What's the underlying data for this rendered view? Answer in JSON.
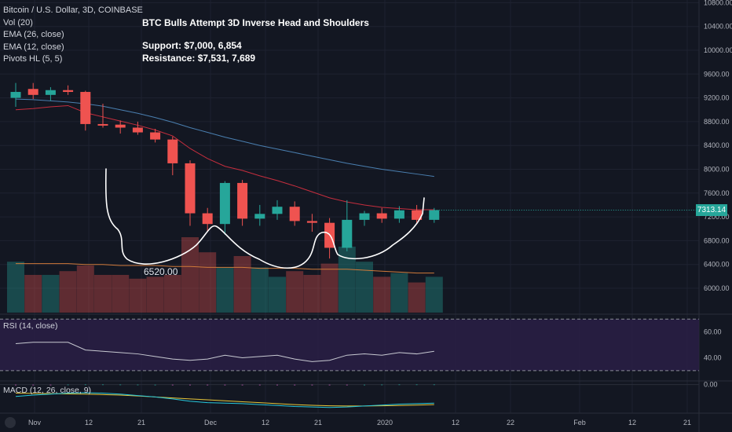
{
  "legend": {
    "symbol": "Bitcoin / U.S. Dollar, 3D, COINBASE",
    "vol": "Vol (20)",
    "ema26": "EMA (26, close)",
    "ema12": "EMA (12, close)",
    "pivots": "Pivots HL (5, 5)"
  },
  "annotation": {
    "title": "BTC Bulls Attempt 3D Inverse Head and Shoulders",
    "support": "Support: $7,000, 6,854",
    "resistance": "Resistance: $7,531, 7,689"
  },
  "colors": {
    "background": "#131722",
    "up": "#26a69a",
    "down": "#ef5350",
    "ema26": "#4a7fb0",
    "ema12": "#c62e3e",
    "vol_ma": "#d07a3a",
    "rsi": "#c7c9d1",
    "rsi_band": "#2a1e45",
    "macd_line": "#26c6da",
    "macd_signal": "#e6c53a",
    "grid": "#1e2230"
  },
  "pivot_label": "6520.00",
  "rsi_label": "RSI (14, close)",
  "macd_label": "MACD (12, 26, close, 9)",
  "last_price": "7313.14",
  "chart_data": [
    {
      "type": "candlestick",
      "xaxis_ticks": [
        "Nov",
        "12",
        "21",
        "Dec",
        "12",
        "21",
        "2020",
        "12",
        "22",
        "Feb",
        "12",
        "21"
      ],
      "yaxis_ticks": [
        6000,
        6400,
        6800,
        7200,
        7600,
        8000,
        8400,
        8800,
        9200,
        9600,
        10000,
        10400,
        10800
      ],
      "ylim": [
        5650,
        10900
      ],
      "candles": [
        {
          "o": 9200,
          "h": 9450,
          "l": 9050,
          "c": 9300
        },
        {
          "o": 9350,
          "h": 9450,
          "l": 9180,
          "c": 9250
        },
        {
          "o": 9250,
          "h": 9380,
          "l": 9150,
          "c": 9330
        },
        {
          "o": 9330,
          "h": 9410,
          "l": 9250,
          "c": 9300
        },
        {
          "o": 9300,
          "h": 9320,
          "l": 8650,
          "c": 8760
        },
        {
          "o": 8760,
          "h": 9100,
          "l": 8700,
          "c": 8750
        },
        {
          "o": 8750,
          "h": 8820,
          "l": 8600,
          "c": 8700
        },
        {
          "o": 8700,
          "h": 8800,
          "l": 8580,
          "c": 8620
        },
        {
          "o": 8620,
          "h": 8680,
          "l": 8450,
          "c": 8500
        },
        {
          "o": 8500,
          "h": 8550,
          "l": 7900,
          "c": 8100
        },
        {
          "o": 8100,
          "h": 8150,
          "l": 7050,
          "c": 7260
        },
        {
          "o": 7260,
          "h": 7350,
          "l": 6950,
          "c": 7080
        },
        {
          "o": 7080,
          "h": 7800,
          "l": 6900,
          "c": 7770
        },
        {
          "o": 7770,
          "h": 7820,
          "l": 7050,
          "c": 7170
        },
        {
          "o": 7170,
          "h": 7400,
          "l": 7050,
          "c": 7250
        },
        {
          "o": 7250,
          "h": 7480,
          "l": 7150,
          "c": 7370
        },
        {
          "o": 7370,
          "h": 7460,
          "l": 7050,
          "c": 7130
        },
        {
          "o": 7130,
          "h": 7250,
          "l": 6950,
          "c": 7100
        },
        {
          "o": 7100,
          "h": 7180,
          "l": 6500,
          "c": 6680
        },
        {
          "o": 6680,
          "h": 7480,
          "l": 6620,
          "c": 7150
        },
        {
          "o": 7150,
          "h": 7300,
          "l": 7050,
          "c": 7260
        },
        {
          "o": 7260,
          "h": 7350,
          "l": 7100,
          "c": 7170
        },
        {
          "o": 7170,
          "h": 7380,
          "l": 7100,
          "c": 7310
        },
        {
          "o": 7310,
          "h": 7400,
          "l": 7100,
          "c": 7150
        },
        {
          "o": 7150,
          "h": 7350,
          "l": 7100,
          "c": 7313.14
        }
      ],
      "ema26": [
        9180,
        9170,
        9150,
        9130,
        9100,
        9060,
        9000,
        8940,
        8870,
        8790,
        8700,
        8620,
        8540,
        8470,
        8400,
        8340,
        8280,
        8220,
        8160,
        8100,
        8050,
        8000,
        7960,
        7920,
        7880
      ],
      "ema12": [
        9000,
        9020,
        9050,
        9070,
        8950,
        8880,
        8810,
        8740,
        8660,
        8560,
        8350,
        8180,
        8050,
        7980,
        7890,
        7810,
        7720,
        7620,
        7520,
        7450,
        7400,
        7360,
        7340,
        7320,
        7320
      ],
      "volume": [
        2.7,
        2.0,
        2.0,
        2.2,
        2.5,
        2.0,
        2.0,
        1.8,
        1.9,
        2.0,
        4.0,
        3.2,
        2.4,
        3.0,
        2.4,
        1.9,
        2.2,
        2.0,
        2.6,
        3.5,
        2.7,
        1.9,
        2.1,
        1.6,
        1.9
      ],
      "volume_ma": [
        2.6,
        2.6,
        2.6,
        2.6,
        2.55,
        2.55,
        2.5,
        2.5,
        2.5,
        2.45,
        2.45,
        2.4,
        2.4,
        2.4,
        2.35,
        2.35,
        2.35,
        2.3,
        2.3,
        2.3,
        2.25,
        2.2,
        2.15,
        2.1,
        2.1
      ],
      "pivot_low": 6520
    },
    {
      "type": "line",
      "name": "RSI (14, close)",
      "yaxis_ticks": [
        40,
        60
      ],
      "ylim": [
        22,
        72
      ],
      "bands": [
        30,
        70
      ],
      "values": [
        51,
        52,
        52,
        52,
        46,
        45,
        44,
        43,
        41,
        39,
        38,
        39,
        42,
        40,
        41,
        42,
        39,
        37,
        38,
        42,
        43,
        42,
        44,
        43,
        45
      ]
    },
    {
      "type": "line",
      "name": "MACD (12, 26, close, 9)",
      "yaxis_ticks": [
        0
      ],
      "ylim": [
        -600,
        60
      ],
      "macd": [
        -250,
        -220,
        -200,
        -180,
        -170,
        -180,
        -200,
        -230,
        -260,
        -300,
        -350,
        -380,
        -390,
        -400,
        -420,
        -440,
        -460,
        -470,
        -480,
        -470,
        -450,
        -430,
        -410,
        -400,
        -390
      ],
      "signal": [
        -180,
        -185,
        -190,
        -195,
        -200,
        -210,
        -220,
        -240,
        -260,
        -280,
        -300,
        -320,
        -340,
        -360,
        -380,
        -400,
        -420,
        -435,
        -445,
        -450,
        -450,
        -445,
        -440,
        -430,
        -420
      ]
    }
  ]
}
